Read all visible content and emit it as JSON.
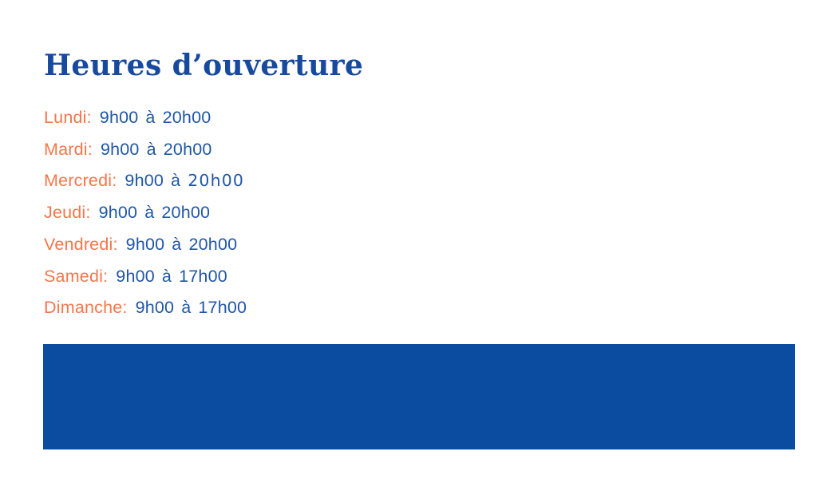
{
  "page": {
    "title": "Heures d’ouverture",
    "title_color": "#17499E",
    "background_color": "#FFFFFF"
  },
  "schedule": {
    "day_color": "#F5764A",
    "hours_color": "#2056A7",
    "rows": [
      {
        "day": "Lundi:",
        "open": "9h00",
        "separator": "à",
        "close": "20h00"
      },
      {
        "day": "Mardi:",
        "open": "9h00",
        "separator": "à",
        "close": "20h00"
      },
      {
        "day": "Mercredi:",
        "open": "9h00",
        "separator": "à",
        "close": "20h00",
        "close_style": "wide"
      },
      {
        "day": "Jeudi:",
        "open": "9h00",
        "separator": "à",
        "close": "20h00"
      },
      {
        "day": "Vendredi:",
        "open": "9h00",
        "separator": "à",
        "close": "20h00"
      },
      {
        "day": "Samedi:",
        "open": "9h00",
        "separator": "à",
        "close": "17h00"
      },
      {
        "day": "Dimanche:",
        "open": "9h00",
        "separator": "à",
        "close": "17h00"
      }
    ]
  },
  "footer_band": {
    "color": "#0C4CA0"
  }
}
